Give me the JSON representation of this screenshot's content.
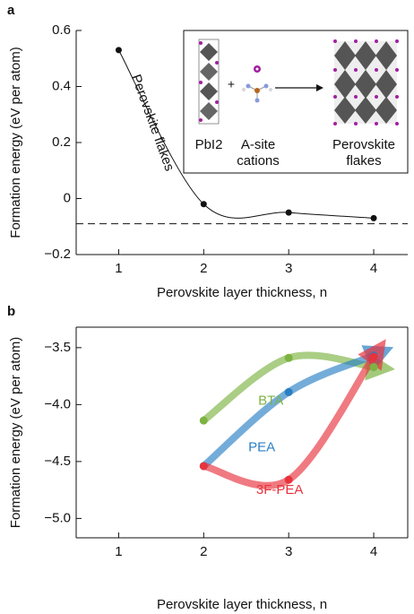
{
  "chart_data": [
    {
      "type": "line",
      "panel": "a",
      "xlabel": "Perovskite layer thickness, n",
      "ylabel": "Formation energy (eV per atom)",
      "x": [
        1,
        2,
        3,
        4
      ],
      "values": [
        0.53,
        -0.02,
        -0.05,
        -0.07
      ],
      "color": "#111111",
      "reference_line": -0.09,
      "annotation": "Perovskite flakes",
      "xlim": [
        0.5,
        4.4
      ],
      "xticks": [
        1,
        2,
        3,
        4
      ],
      "ylim": [
        -0.2,
        0.6
      ],
      "yticks": [
        {
          "value": -0.2,
          "label": "−0.2"
        },
        0,
        0.2,
        0.4,
        0.6
      ],
      "box": false,
      "inset": {
        "left_label": "PbI2",
        "plus": "+",
        "middle_label": "A-site cations",
        "right_label": "Perovskite flakes"
      }
    },
    {
      "type": "arrow-line",
      "panel": "b",
      "xlabel": "Perovskite layer thickness, n",
      "ylabel": "Formation energy (eV per atom)",
      "x": [
        2,
        3,
        4
      ],
      "series": [
        {
          "name": "BTA",
          "color": "#7cb342",
          "values": [
            -4.14,
            -3.59,
            -3.67
          ]
        },
        {
          "name": "PEA",
          "color": "#2a7fc4",
          "values": [
            -4.54,
            -3.89,
            -3.57
          ]
        },
        {
          "name": "3F-PEA",
          "color": "#e8333d",
          "values": [
            -4.54,
            -4.66,
            -3.58
          ]
        }
      ],
      "xlim": [
        0.5,
        4.4
      ],
      "xticks": [
        1,
        2,
        3,
        4
      ],
      "ylim": [
        -5.17,
        -3.32
      ],
      "yticks": [
        {
          "value": -5.0,
          "label": "−5.0"
        },
        {
          "value": -4.5,
          "label": "−4.5"
        },
        {
          "value": -4.0,
          "label": "−4.0"
        },
        {
          "value": -3.5,
          "label": "−3.5"
        }
      ],
      "box": true
    }
  ]
}
